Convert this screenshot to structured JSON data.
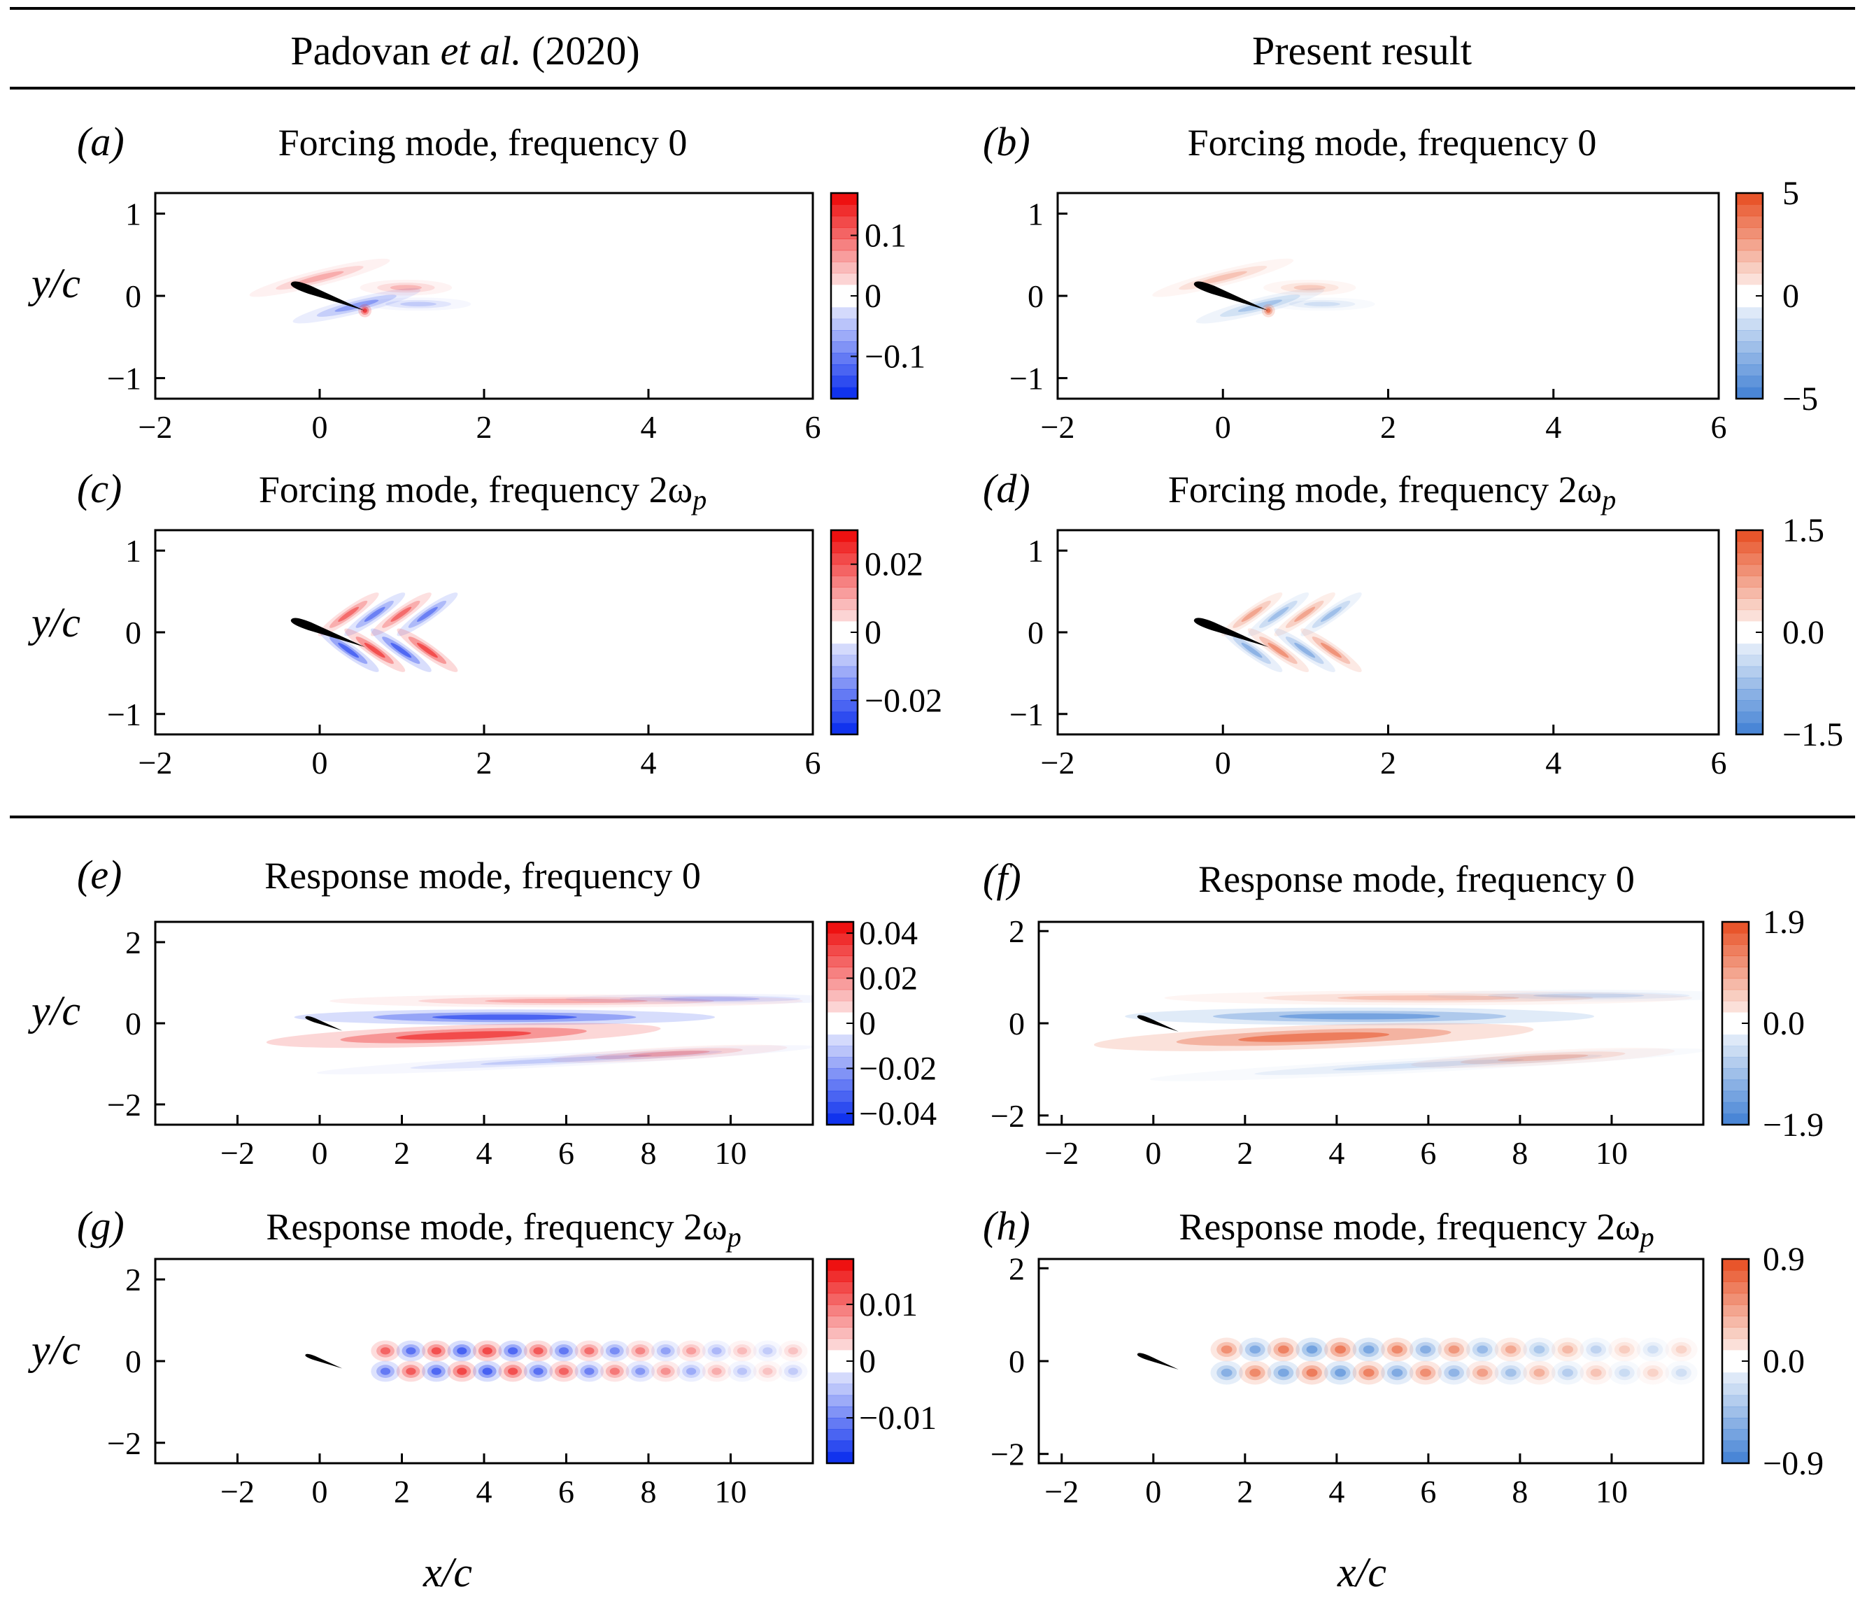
{
  "headers": {
    "left": {
      "pre": "Padovan ",
      "italic": "et al.",
      "post": " (2020)"
    },
    "right": "Present result"
  },
  "axis_labels": {
    "y": "y/c",
    "x": "x/c"
  },
  "colors": {
    "reference_positive": "#ee1111",
    "reference_negative": "#1133ee",
    "present_positive": "#e8552b",
    "present_negative": "#4a86d6",
    "airfoil": "#000000"
  },
  "chart_data": [
    {
      "type": "heatmap",
      "panel": "(a)",
      "title": "Forcing mode, frequency 0",
      "title_sub": "",
      "xlabel": "x/c",
      "ylabel": "y/c",
      "xlim": [
        -2,
        6
      ],
      "ylim": [
        -1.25,
        1.25
      ],
      "xticks": [
        "−2",
        "0",
        "2",
        "4",
        "6"
      ],
      "yticks": [
        "−1",
        "0",
        "1"
      ],
      "colorbar": {
        "range": [
          -0.17,
          0.17
        ],
        "ticks": [
          "0.1",
          "0",
          "−0.1"
        ],
        "tick_values": [
          0.1,
          0,
          -0.1
        ]
      },
      "colormap": "reference",
      "blobs_scale": 1
    },
    {
      "type": "heatmap",
      "panel": "(b)",
      "title": "Forcing mode, frequency 0",
      "title_sub": "",
      "xlabel": "x/c",
      "ylabel": "y/c",
      "xlim": [
        -2,
        6
      ],
      "ylim": [
        -1.25,
        1.25
      ],
      "xticks": [
        "−2",
        "0",
        "2",
        "4",
        "6"
      ],
      "yticks": [
        "−1",
        "0",
        "1"
      ],
      "colorbar": {
        "range": [
          -5,
          5
        ],
        "ticks": [
          "5",
          "0",
          "−5"
        ],
        "tick_values": [
          5,
          0,
          -5
        ]
      },
      "colormap": "present",
      "blobs_scale": 1
    },
    {
      "type": "heatmap",
      "panel": "(c)",
      "title": "Forcing mode, frequency 2ω",
      "title_sub": "p",
      "xlabel": "x/c",
      "ylabel": "y/c",
      "xlim": [
        -2,
        6
      ],
      "ylim": [
        -1.25,
        1.25
      ],
      "xticks": [
        "−2",
        "0",
        "2",
        "4",
        "6"
      ],
      "yticks": [
        "−1",
        "0",
        "1"
      ],
      "colorbar": {
        "range": [
          -0.03,
          0.03
        ],
        "ticks": [
          "0.02",
          "0",
          "−0.02"
        ],
        "tick_values": [
          0.02,
          0,
          -0.02
        ]
      },
      "colormap": "reference",
      "blobs_scale": 1
    },
    {
      "type": "heatmap",
      "panel": "(d)",
      "title": "Forcing mode, frequency 2ω",
      "title_sub": "p",
      "xlabel": "x/c",
      "ylabel": "y/c",
      "xlim": [
        -2,
        6
      ],
      "ylim": [
        -1.25,
        1.25
      ],
      "xticks": [
        "−2",
        "0",
        "2",
        "4",
        "6"
      ],
      "yticks": [
        "−1",
        "0",
        "1"
      ],
      "colorbar": {
        "range": [
          -1.5,
          1.5
        ],
        "ticks": [
          "1.5",
          "0.0",
          "−1.5"
        ],
        "tick_values": [
          1.5,
          0,
          -1.5
        ]
      },
      "colormap": "present",
      "blobs_scale": 1
    },
    {
      "type": "heatmap",
      "panel": "(e)",
      "title": "Response mode, frequency 0",
      "title_sub": "",
      "xlabel": "x/c",
      "ylabel": "y/c",
      "xlim": [
        -4,
        12
      ],
      "ylim": [
        -2.5,
        2.5
      ],
      "xticks": [
        "−2",
        "0",
        "2",
        "4",
        "6",
        "8",
        "10"
      ],
      "yticks": [
        "−2",
        "0",
        "2"
      ],
      "colorbar": {
        "range": [
          -0.045,
          0.045
        ],
        "ticks": [
          "0.04",
          "0.02",
          "0",
          "−0.02",
          "−0.04"
        ],
        "tick_values": [
          0.04,
          0.02,
          0,
          -0.02,
          -0.04
        ]
      },
      "colormap": "reference",
      "blobs_scale": 1
    },
    {
      "type": "heatmap",
      "panel": "(f)",
      "title": "Response mode, frequency 0",
      "title_sub": "",
      "xlabel": "x/c",
      "ylabel": "y/c",
      "xlim": [
        -2.5,
        12
      ],
      "ylim": [
        -2.2,
        2.2
      ],
      "xticks": [
        "−2",
        "0",
        "2",
        "4",
        "6",
        "8",
        "10"
      ],
      "yticks": [
        "−2",
        "0",
        "2"
      ],
      "colorbar": {
        "range": [
          -1.9,
          1.9
        ],
        "ticks": [
          "1.9",
          "0.0",
          "−1.9"
        ],
        "tick_values": [
          1.9,
          0,
          -1.9
        ]
      },
      "colormap": "present",
      "blobs_scale": 1
    },
    {
      "type": "heatmap",
      "panel": "(g)",
      "title": "Response mode, frequency 2ω",
      "title_sub": "p",
      "xlabel": "x/c",
      "ylabel": "y/c",
      "xlim": [
        -4,
        12
      ],
      "ylim": [
        -2.5,
        2.5
      ],
      "xticks": [
        "−2",
        "0",
        "2",
        "4",
        "6",
        "8",
        "10"
      ],
      "yticks": [
        "−2",
        "0",
        "2"
      ],
      "colorbar": {
        "range": [
          -0.018,
          0.018
        ],
        "ticks": [
          "0.01",
          "0",
          "−0.01"
        ],
        "tick_values": [
          0.01,
          0,
          -0.01
        ]
      },
      "colormap": "reference",
      "blobs_scale": 1
    },
    {
      "type": "heatmap",
      "panel": "(h)",
      "title": "Response mode, frequency 2ω",
      "title_sub": "p",
      "xlabel": "x/c",
      "ylabel": "y/c",
      "xlim": [
        -2.5,
        12
      ],
      "ylim": [
        -2.2,
        2.2
      ],
      "xticks": [
        "−2",
        "0",
        "2",
        "4",
        "6",
        "8",
        "10"
      ],
      "yticks": [
        "−2",
        "0",
        "2"
      ],
      "colorbar": {
        "range": [
          -0.9,
          0.9
        ],
        "ticks": [
          "0.9",
          "0.0",
          "−0.9"
        ],
        "tick_values": [
          0.9,
          0,
          -0.9
        ]
      },
      "colormap": "present",
      "blobs_scale": 1
    }
  ]
}
